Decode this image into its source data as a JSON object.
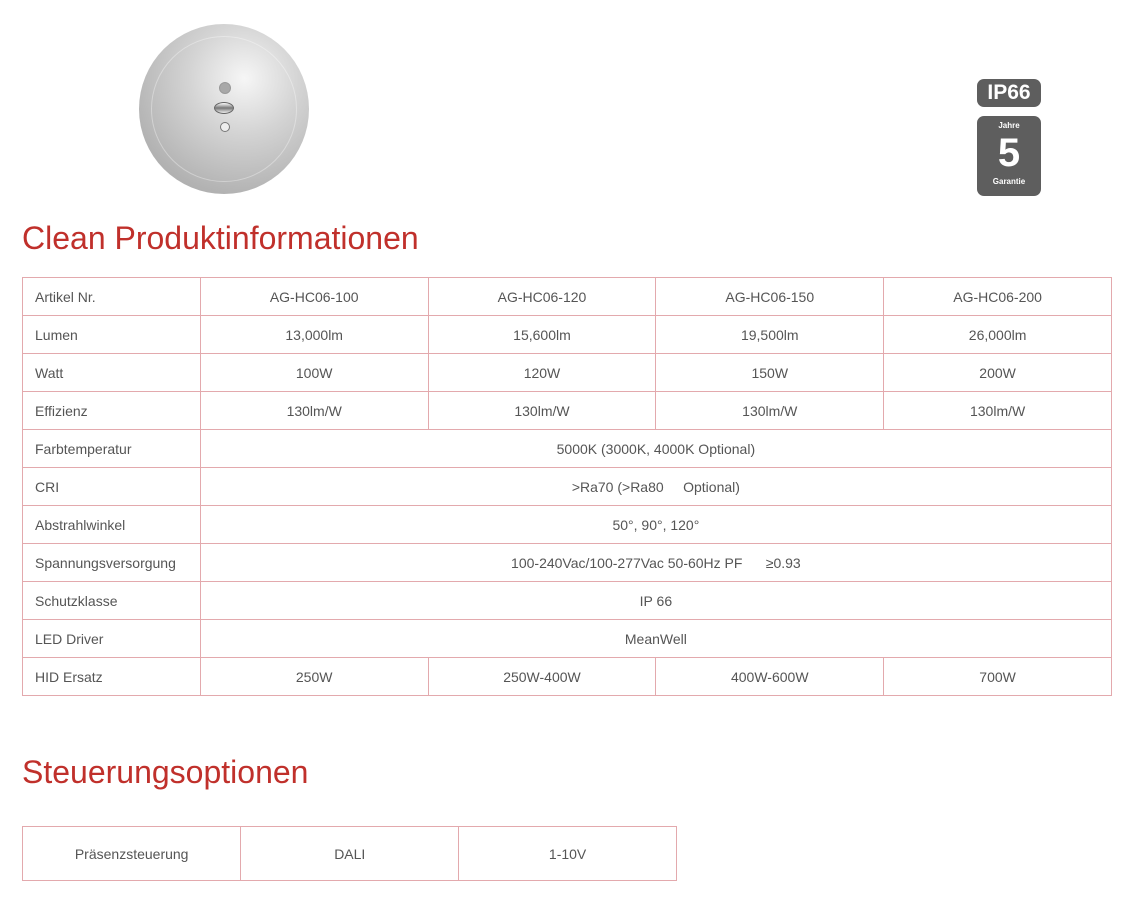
{
  "badges": {
    "ip": "IP66",
    "warranty_top": "Jahre",
    "warranty_number": "5",
    "warranty_bottom": "Garantie"
  },
  "section1": {
    "title": "Clean Produktinformationen",
    "rows": [
      {
        "label": "Artikel Nr.",
        "values": [
          "AG-HC06-100",
          "AG-HC06-120",
          "AG-HC06-150",
          "AG-HC06-200"
        ]
      },
      {
        "label": "Lumen",
        "values": [
          "13,000lm",
          "15,600lm",
          "19,500lm",
          "26,000lm"
        ]
      },
      {
        "label": "Watt",
        "values": [
          "100W",
          "120W",
          "150W",
          "200W"
        ]
      },
      {
        "label": "Effizienz",
        "values": [
          "130lm/W",
          "130lm/W",
          "130lm/W",
          "130lm/W"
        ]
      },
      {
        "label": "Farbtemperatur",
        "values": [
          "5000K (3000K, 4000K Optional)"
        ]
      },
      {
        "label": "CRI",
        "values": [
          ">Ra70 (>Ra80     Optional)"
        ]
      },
      {
        "label": "Abstrahlwinkel",
        "values": [
          "50°, 90°, 120°"
        ]
      },
      {
        "label": "Spannungsversorgung",
        "values": [
          "100-240Vac/100-277Vac 50-60Hz PF      ≥0.93"
        ]
      },
      {
        "label": "Schutzklasse",
        "values": [
          "IP 66"
        ]
      },
      {
        "label": "LED Driver",
        "values": [
          "MeanWell"
        ]
      },
      {
        "label": "HID Ersatz",
        "values": [
          "250W",
          "250W-400W",
          "400W-600W",
          "700W"
        ]
      }
    ]
  },
  "section2": {
    "title": "Steuerungsoptionen",
    "cells": [
      "Präsenzsteuerung",
      "DALI",
      "1-10V"
    ]
  }
}
